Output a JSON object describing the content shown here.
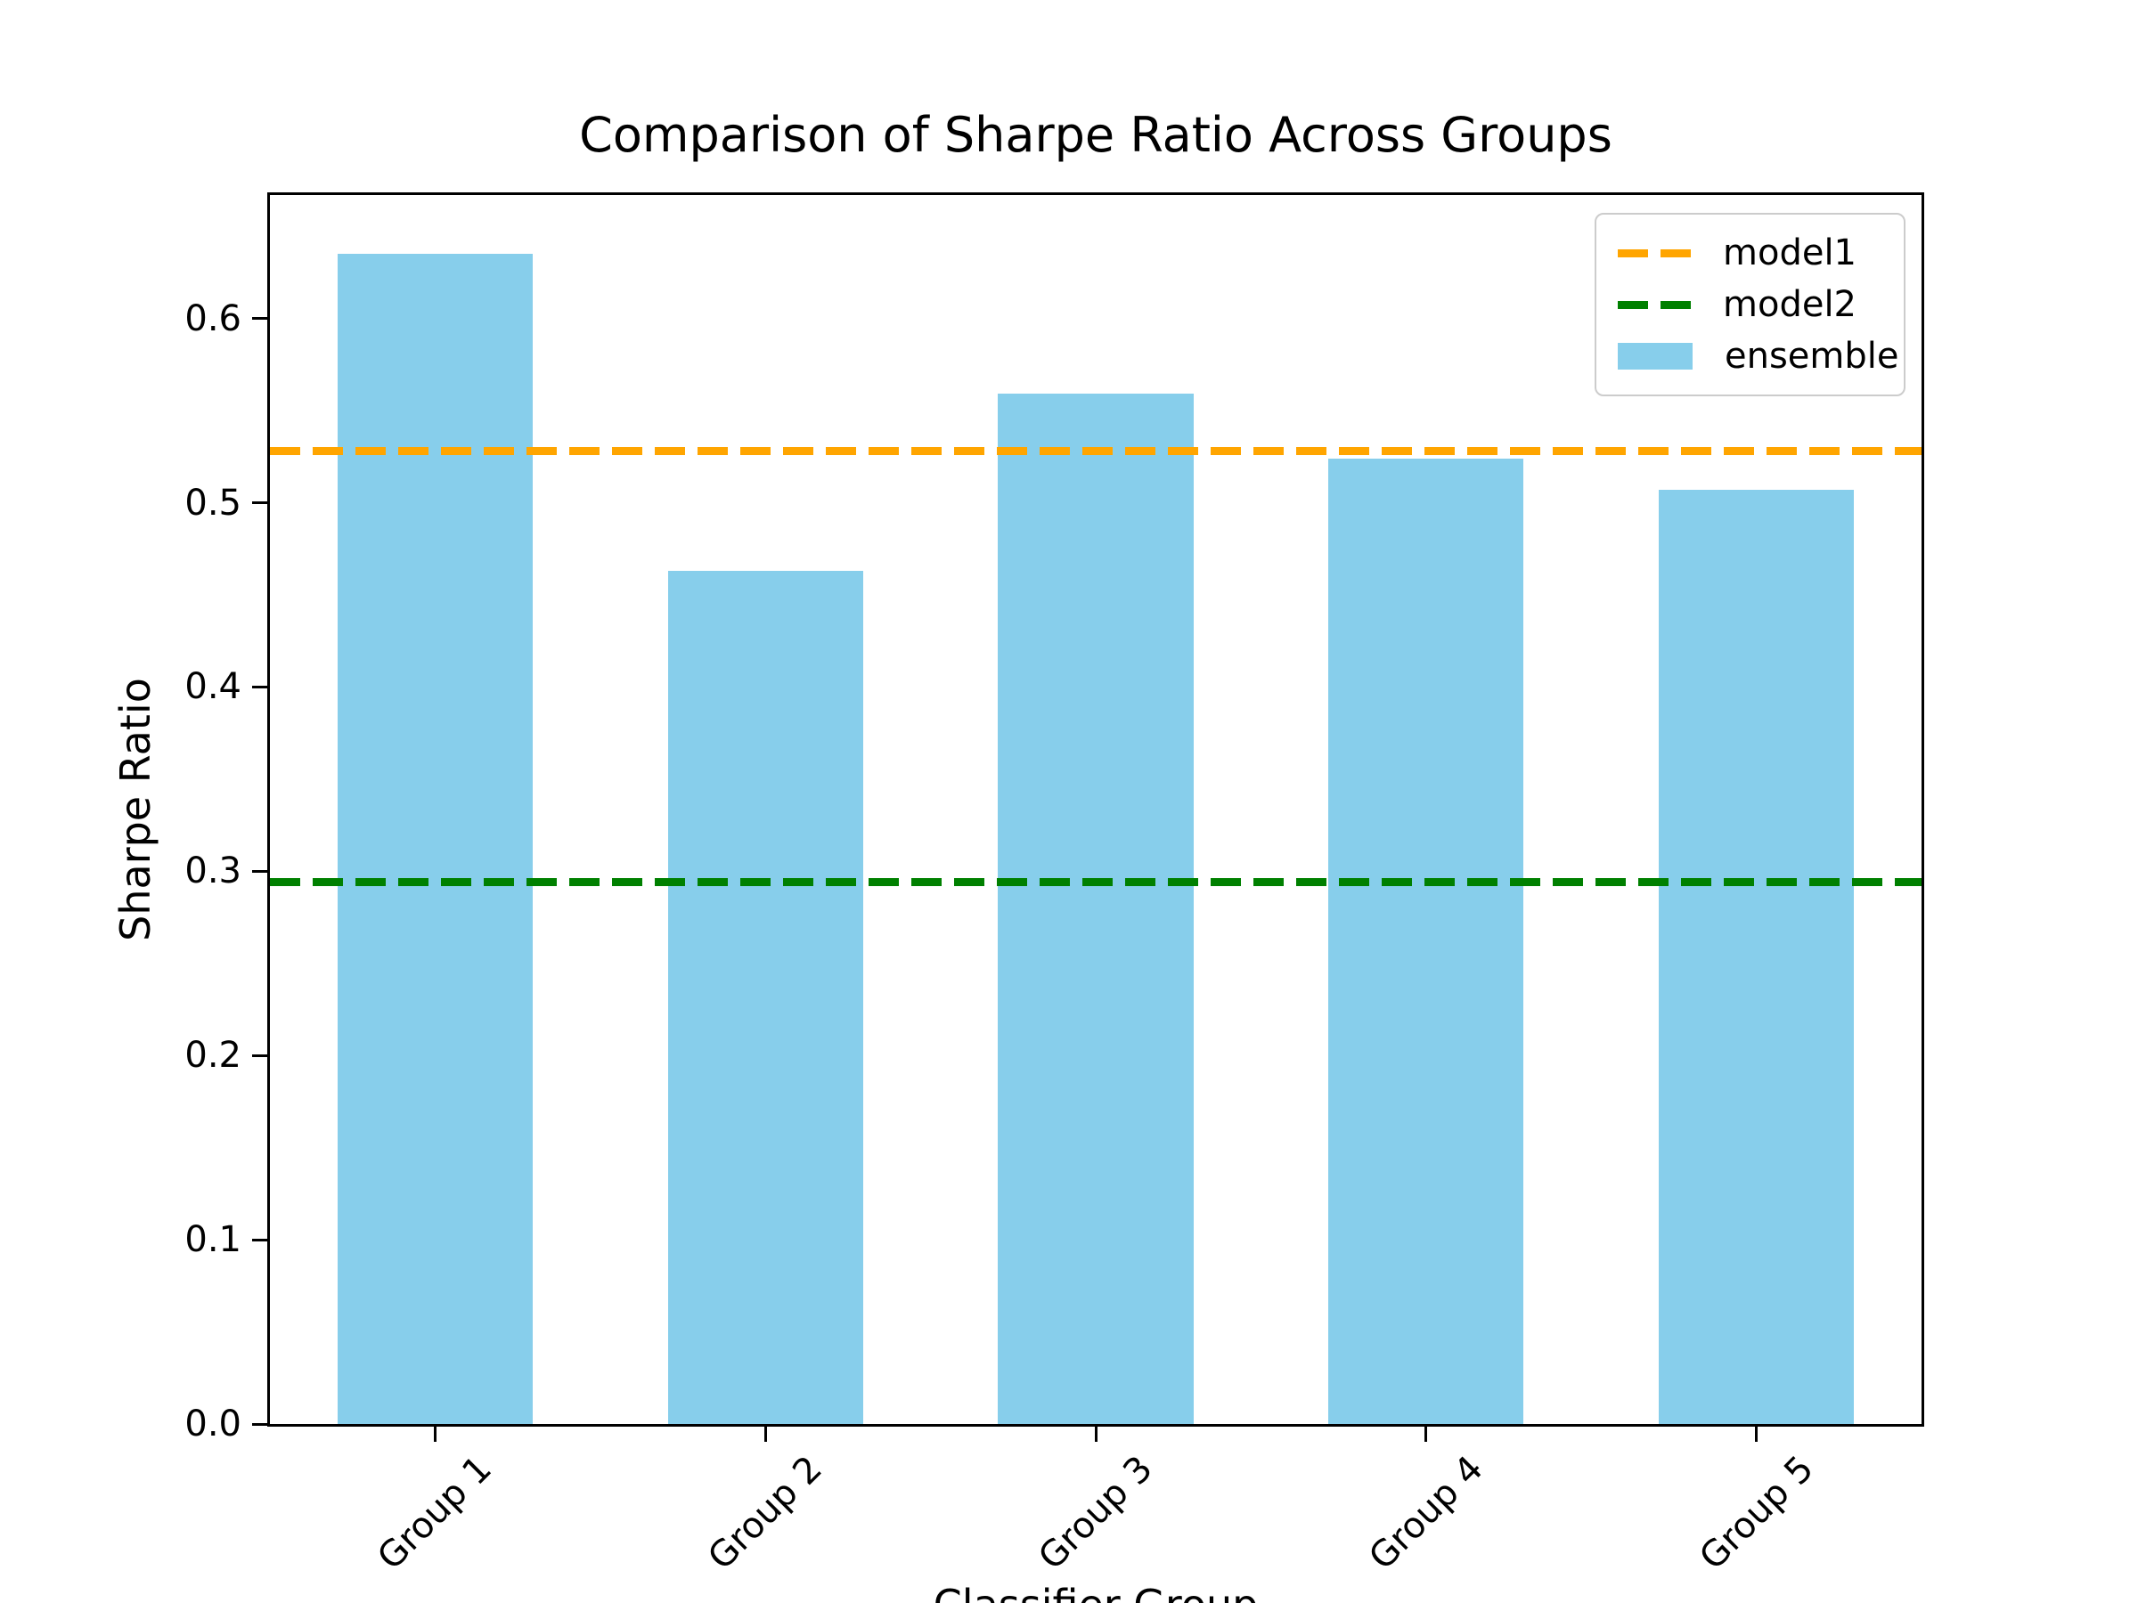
{
  "chart_data": {
    "type": "bar",
    "title": "Comparison of Sharpe Ratio Across Groups",
    "xlabel": "Classifier Group",
    "ylabel": "Sharpe Ratio",
    "categories": [
      "Group 1",
      "Group 2",
      "Group 3",
      "Group 4",
      "Group 5"
    ],
    "series": [
      {
        "name": "ensemble",
        "values": [
          0.635,
          0.463,
          0.559,
          0.524,
          0.507
        ]
      }
    ],
    "hlines": [
      {
        "name": "model1",
        "value": 0.528,
        "color": "#FFA500",
        "style": "dashed"
      },
      {
        "name": "model2",
        "value": 0.294,
        "color": "#008000",
        "style": "dashed"
      }
    ],
    "ylim": [
      0,
      0.667
    ],
    "yticks": [
      0.0,
      0.1,
      0.2,
      0.3,
      0.4,
      0.5,
      0.6
    ],
    "bar_color": "#87CEEB",
    "grid": false,
    "legend": {
      "position": "upper right",
      "entries": [
        {
          "label": "model1",
          "type": "line",
          "color": "#FFA500"
        },
        {
          "label": "model2",
          "type": "line",
          "color": "#008000"
        },
        {
          "label": "ensemble",
          "type": "patch",
          "color": "#87CEEB"
        }
      ]
    }
  }
}
